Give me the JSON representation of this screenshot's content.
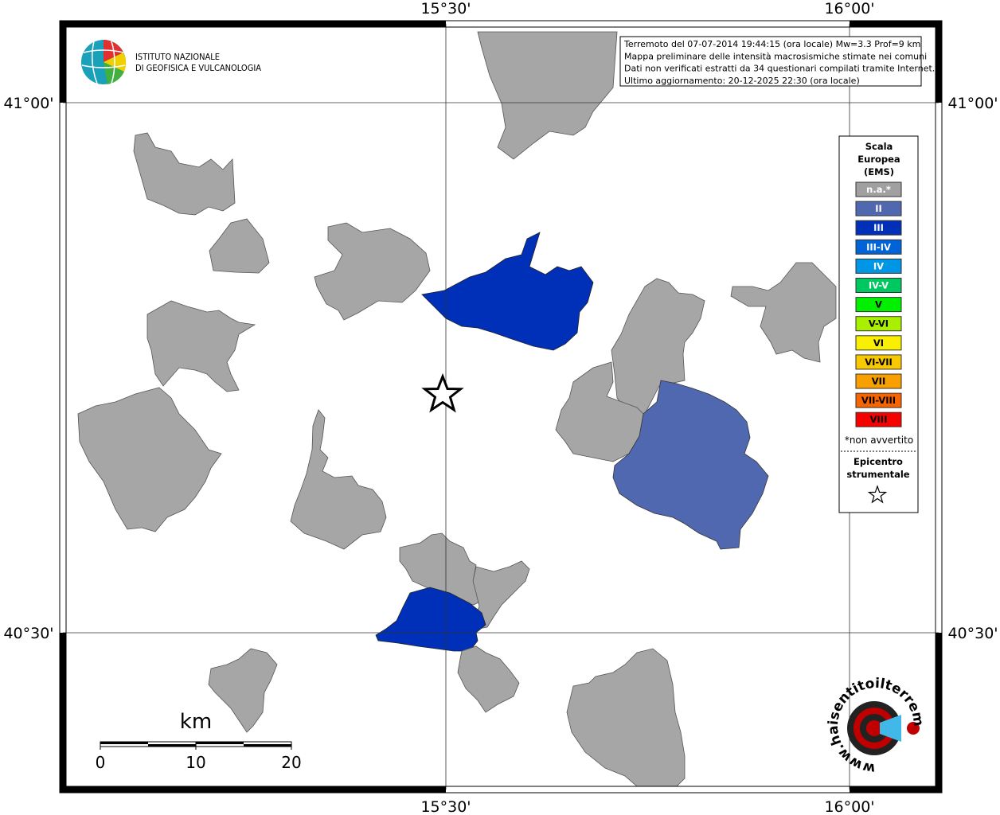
{
  "map": {
    "frame_labels": {
      "top": [
        "15°30'",
        "16°00'"
      ],
      "bottom": [
        "15°30'",
        "16°00'"
      ],
      "left": [
        "41°00'",
        "40°30'"
      ],
      "right": [
        "41°00'",
        "40°30'"
      ]
    },
    "logo": {
      "line1": "ISTITUTO NAZIONALE",
      "line2": "DI GEOFISICA E VULCANOLOGIA"
    },
    "info": [
      "Terremoto del 07-07-2014 19:44:15 (ora locale) Mw=3.3 Prof=9 km",
      "Mappa preliminare delle intensità macrosismiche stimate nei comuni",
      "Dati non verificati estratti da 34 questionari compilati tramite Internet.",
      "Ultimo aggiornamento: 20-12-2025 22:30 (ora locale)"
    ],
    "legend": {
      "title": [
        "Scala",
        "Europea",
        "(EMS)"
      ],
      "items": [
        {
          "label": "n.a.*",
          "color": "#a0a0a0",
          "text_color": "#ffffff"
        },
        {
          "label": "II",
          "color": "#5068b0",
          "text_color": "#ffffff"
        },
        {
          "label": "III",
          "color": "#0030b8",
          "text_color": "#ffffff"
        },
        {
          "label": "III-IV",
          "color": "#0064d8",
          "text_color": "#ffffff"
        },
        {
          "label": "IV",
          "color": "#0096e6",
          "text_color": "#ffffff"
        },
        {
          "label": "IV-V",
          "color": "#00c860",
          "text_color": "#ffffff"
        },
        {
          "label": "V",
          "color": "#00f000",
          "text_color": "#000000"
        },
        {
          "label": "V-VI",
          "color": "#a8f000",
          "text_color": "#000000"
        },
        {
          "label": "VI",
          "color": "#f8f000",
          "text_color": "#000000"
        },
        {
          "label": "VI-VII",
          "color": "#f8c800",
          "text_color": "#000000"
        },
        {
          "label": "VII",
          "color": "#f8a000",
          "text_color": "#000000"
        },
        {
          "label": "VII-VIII",
          "color": "#f86400",
          "text_color": "#000000"
        },
        {
          "label": "VIII",
          "color": "#f80000",
          "text_color": "#000000"
        }
      ],
      "note": "*non avvertito",
      "epicenter_title": [
        "Epicentro",
        "strumentale"
      ]
    },
    "scale_bar": {
      "unit": "km",
      "labels": [
        "0",
        "10",
        "20"
      ]
    },
    "badge": "www.haisentitoilterremoto.it"
  }
}
